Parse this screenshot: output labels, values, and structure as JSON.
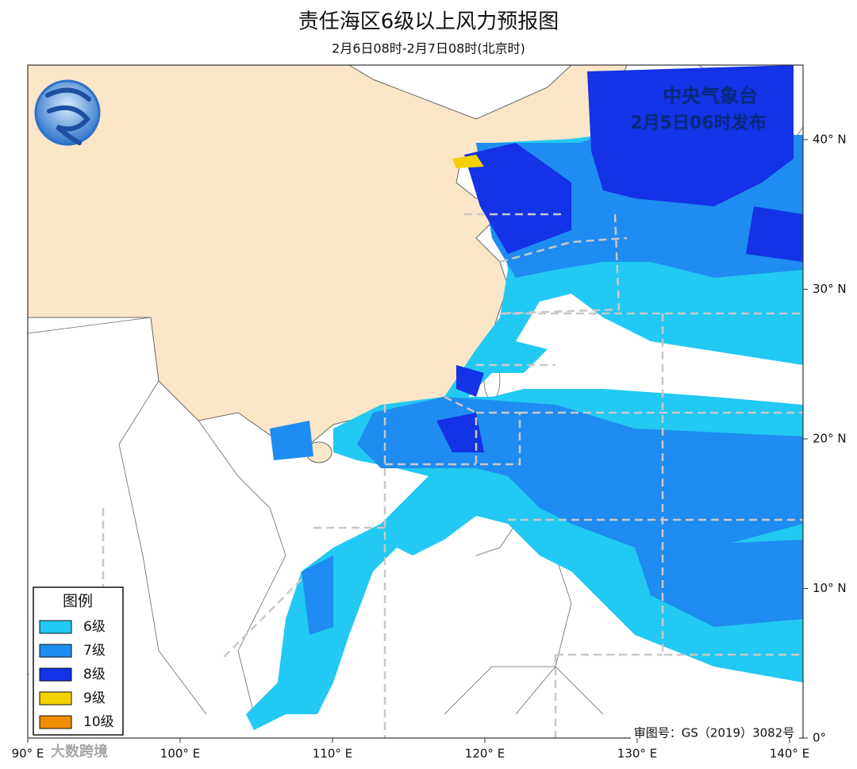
{
  "header": {
    "title": "责任海区6级以上风力预报图",
    "subtitle": "2月6日08时-2月7日08时(北京时)"
  },
  "issuer": {
    "name": "中央气象台",
    "time": "2月5日06时发布"
  },
  "legend": {
    "title": "图例",
    "items": [
      {
        "label": "6级",
        "color": "#22c9f2"
      },
      {
        "label": "7级",
        "color": "#1e8cf0"
      },
      {
        "label": "8级",
        "color": "#1432e6"
      },
      {
        "label": "9级",
        "color": "#f5d000"
      },
      {
        "label": "10级",
        "color": "#f08c00"
      }
    ]
  },
  "axes": {
    "lon_ticks": [
      {
        "value": 90,
        "label": "90° E"
      },
      {
        "value": 100,
        "label": "100° E"
      },
      {
        "value": 110,
        "label": "110° E"
      },
      {
        "value": 120,
        "label": "120° E"
      },
      {
        "value": 130,
        "label": "130° E"
      },
      {
        "value": 140,
        "label": "140° E"
      }
    ],
    "lat_ticks": [
      {
        "value": 0,
        "label": "0°"
      },
      {
        "value": 10,
        "label": "10° N"
      },
      {
        "value": 20,
        "label": "20° N"
      },
      {
        "value": 30,
        "label": "30° N"
      },
      {
        "value": 40,
        "label": "40° N"
      }
    ]
  },
  "map_approval": "审图号：GS（2019）3082号",
  "watermark": "大数跨境"
}
